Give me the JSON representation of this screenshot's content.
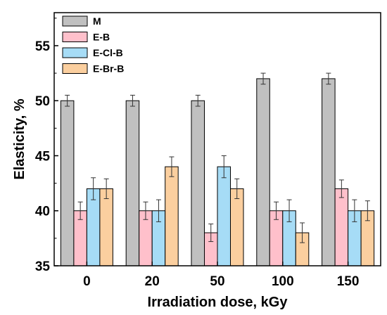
{
  "chart_data": {
    "type": "bar",
    "categories": [
      "0",
      "20",
      "50",
      "100",
      "150"
    ],
    "series": [
      {
        "name": "M",
        "color": "#c0c0c0",
        "values": [
          50,
          50,
          50,
          52,
          52
        ],
        "errors": [
          0.5,
          0.5,
          0.5,
          0.5,
          0.5
        ]
      },
      {
        "name": "E-B",
        "color": "#ffc0cb",
        "values": [
          40,
          40,
          38,
          40,
          42
        ],
        "errors": [
          0.8,
          0.8,
          0.8,
          0.8,
          0.8
        ]
      },
      {
        "name": "E-Cl-B",
        "color": "#a6dcf6",
        "values": [
          42,
          40,
          44,
          40,
          40
        ],
        "errors": [
          1.0,
          1.0,
          1.0,
          1.0,
          1.0
        ]
      },
      {
        "name": "E-Br-B",
        "color": "#fbcf9f",
        "values": [
          42,
          44,
          42,
          38,
          40
        ],
        "errors": [
          0.9,
          0.9,
          0.9,
          0.9,
          0.9
        ]
      }
    ],
    "xlabel": "Irradiation dose, kGy",
    "ylabel": "Elasticity, %",
    "ylim": [
      35,
      58
    ],
    "yticks": [
      "35",
      "40",
      "45",
      "50",
      "55"
    ],
    "grid": false,
    "legend_position": "top-left"
  }
}
